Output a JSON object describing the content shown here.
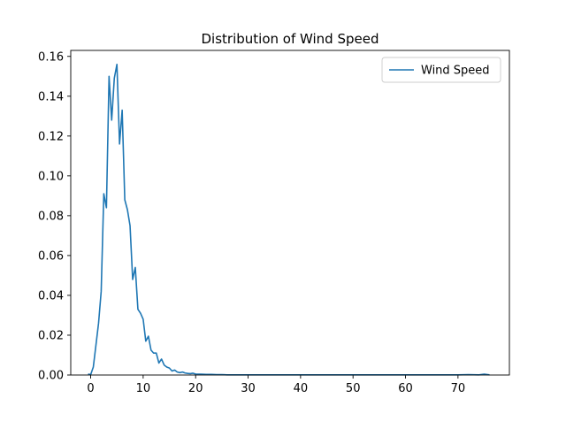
{
  "chart_data": {
    "type": "line",
    "title": "Distribution of Wind Speed",
    "xlabel": "",
    "ylabel": "",
    "xlim": [
      -3.8,
      79.8
    ],
    "ylim": [
      0,
      0.163
    ],
    "xticks": [
      0,
      10,
      20,
      30,
      40,
      50,
      60,
      70
    ],
    "yticks": [
      0.0,
      0.02,
      0.04,
      0.06,
      0.08,
      0.1,
      0.12,
      0.14,
      0.16
    ],
    "grid": false,
    "legend": {
      "position": "top-right"
    },
    "series": [
      {
        "name": "Wind Speed",
        "color": "#1f77b4",
        "x": [
          -0.5,
          0,
          0.5,
          1,
          1.5,
          2,
          2.5,
          3,
          3.5,
          4,
          4.5,
          5,
          5.5,
          6,
          6.5,
          7,
          7.5,
          8,
          8.5,
          9,
          9.5,
          10,
          10.5,
          11,
          11.5,
          12,
          12.5,
          13,
          13.5,
          14,
          14.5,
          15,
          15.5,
          16,
          16.5,
          17,
          17.5,
          18,
          18.5,
          19,
          19.5,
          20,
          21,
          22,
          23,
          24,
          25,
          26,
          28,
          30,
          35,
          40,
          45,
          50,
          55,
          60,
          65,
          70,
          72,
          74,
          75,
          76
        ],
        "y": [
          0.0005,
          0.0002,
          0.004,
          0.015,
          0.026,
          0.042,
          0.091,
          0.084,
          0.15,
          0.128,
          0.149,
          0.156,
          0.116,
          0.133,
          0.088,
          0.083,
          0.075,
          0.048,
          0.054,
          0.033,
          0.031,
          0.028,
          0.017,
          0.0195,
          0.0125,
          0.011,
          0.011,
          0.006,
          0.008,
          0.005,
          0.004,
          0.0035,
          0.002,
          0.0025,
          0.0015,
          0.0012,
          0.0015,
          0.001,
          0.0008,
          0.0007,
          0.0009,
          0.0005,
          0.0004,
          0.0003,
          0.0003,
          0.0002,
          0.0002,
          0.0001,
          0.0001,
          0.0001,
          0.0001,
          0.0001,
          0.0001,
          0.0001,
          0.0001,
          0.0001,
          0.0001,
          0.0001,
          0.0002,
          0.0001,
          0.0004,
          0.0001
        ]
      }
    ]
  }
}
